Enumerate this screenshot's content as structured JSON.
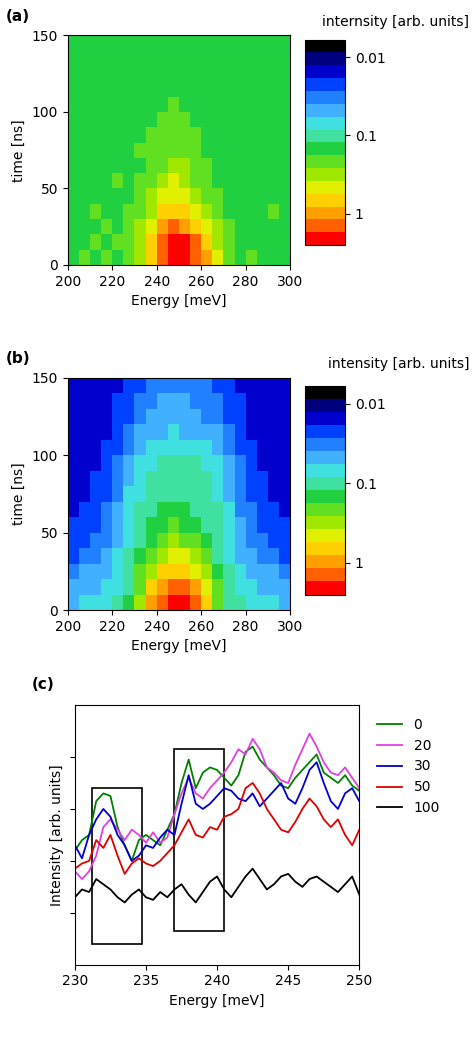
{
  "chart_data": [
    {
      "type": "heatmap",
      "label": "(a)",
      "xlabel": "Energy [meV]",
      "ylabel": "time [ns]",
      "colorbar_label": "internsity [arb. units]",
      "xlim": [
        200,
        300
      ],
      "xticks": [
        200,
        220,
        240,
        260,
        280,
        300
      ],
      "ylim": [
        0,
        150
      ],
      "yticks": [
        0,
        50,
        100,
        150
      ],
      "x_edges": [
        200,
        205,
        210,
        215,
        220,
        225,
        230,
        235,
        240,
        245,
        250,
        255,
        260,
        265,
        270,
        275,
        280,
        285,
        290,
        295,
        300
      ],
      "y_edges": [
        0,
        10,
        20,
        30,
        40,
        50,
        60,
        70,
        80,
        90,
        100,
        110,
        120,
        130,
        140,
        150
      ],
      "colorbar_range": [
        0.006,
        2.5
      ],
      "colorbar_ticks": [
        0.01,
        0.1,
        1
      ],
      "cells": [
        [
          0.15,
          0.18,
          0.14,
          0.2,
          0.17,
          0.25,
          0.35,
          0.8,
          1.5,
          2.0,
          2.0,
          1.6,
          0.9,
          0.4,
          0.22,
          0.16,
          0.18,
          0.14,
          0.17,
          0.15
        ],
        [
          0.16,
          0.14,
          0.19,
          0.15,
          0.2,
          0.22,
          0.3,
          0.7,
          1.4,
          2.0,
          1.9,
          1.3,
          0.7,
          0.35,
          0.2,
          0.15,
          0.17,
          0.15,
          0.14,
          0.16
        ],
        [
          0.14,
          0.17,
          0.15,
          0.18,
          0.16,
          0.2,
          0.28,
          0.5,
          0.9,
          1.2,
          1.1,
          0.8,
          0.5,
          0.28,
          0.18,
          0.16,
          0.15,
          0.17,
          0.16,
          0.14
        ],
        [
          0.16,
          0.15,
          0.18,
          0.14,
          0.17,
          0.18,
          0.22,
          0.35,
          0.6,
          0.8,
          0.7,
          0.5,
          0.32,
          0.22,
          0.17,
          0.15,
          0.16,
          0.14,
          0.18,
          0.15
        ],
        [
          0.15,
          0.16,
          0.14,
          0.17,
          0.15,
          0.17,
          0.2,
          0.28,
          0.4,
          0.55,
          0.5,
          0.35,
          0.25,
          0.19,
          0.16,
          0.17,
          0.14,
          0.16,
          0.15,
          0.17
        ],
        [
          0.17,
          0.14,
          0.16,
          0.15,
          0.18,
          0.16,
          0.18,
          0.22,
          0.3,
          0.4,
          0.35,
          0.26,
          0.2,
          0.17,
          0.15,
          0.16,
          0.17,
          0.15,
          0.14,
          0.16
        ],
        [
          0.15,
          0.17,
          0.15,
          0.16,
          0.14,
          0.17,
          0.17,
          0.2,
          0.25,
          0.3,
          0.28,
          0.22,
          0.18,
          0.16,
          0.17,
          0.14,
          0.16,
          0.17,
          0.15,
          0.15
        ],
        [
          0.16,
          0.15,
          0.17,
          0.14,
          0.16,
          0.15,
          0.18,
          0.18,
          0.22,
          0.25,
          0.24,
          0.2,
          0.17,
          0.15,
          0.16,
          0.15,
          0.14,
          0.16,
          0.17,
          0.14
        ],
        [
          0.14,
          0.16,
          0.15,
          0.17,
          0.15,
          0.16,
          0.15,
          0.18,
          0.2,
          0.22,
          0.2,
          0.18,
          0.16,
          0.15,
          0.14,
          0.16,
          0.15,
          0.14,
          0.16,
          0.15
        ],
        [
          0.15,
          0.14,
          0.17,
          0.15,
          0.16,
          0.14,
          0.17,
          0.16,
          0.18,
          0.19,
          0.18,
          0.17,
          0.15,
          0.16,
          0.15,
          0.14,
          0.16,
          0.15,
          0.14,
          0.17
        ],
        [
          0.16,
          0.15,
          0.14,
          0.16,
          0.13,
          0.17,
          0.15,
          0.16,
          0.17,
          0.18,
          0.17,
          0.16,
          0.15,
          0.14,
          0.16,
          0.15,
          0.13,
          0.16,
          0.15,
          0.14
        ],
        [
          0.14,
          0.16,
          0.15,
          0.13,
          0.16,
          0.15,
          0.16,
          0.15,
          0.16,
          0.17,
          0.16,
          0.15,
          0.16,
          0.15,
          0.13,
          0.16,
          0.15,
          0.14,
          0.16,
          0.15
        ],
        [
          0.15,
          0.13,
          0.16,
          0.15,
          0.14,
          0.16,
          0.14,
          0.16,
          0.15,
          0.16,
          0.15,
          0.16,
          0.14,
          0.16,
          0.15,
          0.14,
          0.16,
          0.15,
          0.13,
          0.16
        ],
        [
          0.16,
          0.15,
          0.14,
          0.16,
          0.15,
          0.13,
          0.16,
          0.15,
          0.16,
          0.15,
          0.16,
          0.14,
          0.15,
          0.13,
          0.16,
          0.15,
          0.14,
          0.16,
          0.15,
          0.14
        ],
        [
          0.14,
          0.16,
          0.15,
          0.14,
          0.16,
          0.15,
          0.14,
          0.16,
          0.15,
          0.16,
          0.15,
          0.16,
          0.14,
          0.16,
          0.15,
          0.16,
          0.15,
          0.14,
          0.16,
          0.15
        ]
      ]
    },
    {
      "type": "heatmap",
      "label": "(b)",
      "xlabel": "Energy [meV]",
      "ylabel": "time [ns]",
      "colorbar_label": "intensity [arb. units]",
      "xlim": [
        200,
        300
      ],
      "xticks": [
        200,
        220,
        240,
        260,
        280,
        300
      ],
      "ylim": [
        0,
        150
      ],
      "yticks": [
        0,
        50,
        100,
        150
      ],
      "x_edges": [
        200,
        205,
        210,
        215,
        220,
        225,
        230,
        235,
        240,
        245,
        250,
        255,
        260,
        265,
        270,
        275,
        280,
        285,
        290,
        295,
        300
      ],
      "y_edges": [
        0,
        10,
        20,
        30,
        40,
        50,
        60,
        70,
        80,
        90,
        100,
        110,
        120,
        130,
        140,
        150
      ],
      "colorbar_range": [
        0.006,
        2.5
      ],
      "colorbar_ticks": [
        0.01,
        0.1,
        1
      ],
      "cells": [
        [
          0.05,
          0.06,
          0.07,
          0.08,
          0.1,
          0.15,
          0.3,
          0.9,
          1.6,
          2.1,
          2.0,
          1.4,
          0.7,
          0.25,
          0.12,
          0.09,
          0.08,
          0.07,
          0.06,
          0.05
        ],
        [
          0.04,
          0.05,
          0.05,
          0.06,
          0.08,
          0.12,
          0.25,
          0.6,
          1.1,
          1.5,
          1.4,
          1.0,
          0.5,
          0.2,
          0.1,
          0.07,
          0.06,
          0.05,
          0.05,
          0.04
        ],
        [
          0.03,
          0.04,
          0.04,
          0.05,
          0.07,
          0.1,
          0.18,
          0.35,
          0.6,
          0.8,
          0.75,
          0.5,
          0.3,
          0.15,
          0.09,
          0.06,
          0.05,
          0.04,
          0.04,
          0.03
        ],
        [
          0.025,
          0.03,
          0.035,
          0.04,
          0.06,
          0.09,
          0.13,
          0.22,
          0.35,
          0.45,
          0.4,
          0.3,
          0.2,
          0.12,
          0.08,
          0.05,
          0.04,
          0.035,
          0.03,
          0.025
        ],
        [
          0.02,
          0.025,
          0.03,
          0.035,
          0.05,
          0.08,
          0.11,
          0.16,
          0.22,
          0.28,
          0.25,
          0.2,
          0.15,
          0.1,
          0.07,
          0.045,
          0.035,
          0.03,
          0.025,
          0.02
        ],
        [
          0.02,
          0.02,
          0.025,
          0.03,
          0.045,
          0.07,
          0.1,
          0.13,
          0.16,
          0.18,
          0.17,
          0.15,
          0.12,
          0.09,
          0.065,
          0.04,
          0.03,
          0.025,
          0.02,
          0.02
        ],
        [
          0.018,
          0.02,
          0.022,
          0.028,
          0.04,
          0.065,
          0.09,
          0.11,
          0.13,
          0.14,
          0.13,
          0.12,
          0.1,
          0.085,
          0.06,
          0.035,
          0.028,
          0.022,
          0.02,
          0.018
        ],
        [
          0.015,
          0.018,
          0.02,
          0.025,
          0.035,
          0.06,
          0.08,
          0.1,
          0.11,
          0.12,
          0.11,
          0.1,
          0.09,
          0.08,
          0.055,
          0.03,
          0.025,
          0.02,
          0.018,
          0.015
        ],
        [
          0.016,
          0.015,
          0.02,
          0.022,
          0.03,
          0.05,
          0.075,
          0.09,
          0.1,
          0.1,
          0.1,
          0.09,
          0.085,
          0.07,
          0.05,
          0.03,
          0.022,
          0.02,
          0.016,
          0.015
        ],
        [
          0.015,
          0.017,
          0.018,
          0.02,
          0.028,
          0.045,
          0.065,
          0.08,
          0.09,
          0.09,
          0.09,
          0.085,
          0.075,
          0.06,
          0.045,
          0.028,
          0.02,
          0.018,
          0.015,
          0.016
        ],
        [
          0.014,
          0.016,
          0.017,
          0.02,
          0.025,
          0.035,
          0.05,
          0.065,
          0.07,
          0.075,
          0.07,
          0.065,
          0.06,
          0.05,
          0.035,
          0.025,
          0.02,
          0.017,
          0.016,
          0.014
        ],
        [
          0.015,
          0.014,
          0.016,
          0.018,
          0.022,
          0.03,
          0.04,
          0.05,
          0.055,
          0.06,
          0.055,
          0.05,
          0.045,
          0.04,
          0.03,
          0.022,
          0.018,
          0.016,
          0.014,
          0.015
        ],
        [
          0.014,
          0.015,
          0.016,
          0.017,
          0.02,
          0.026,
          0.035,
          0.04,
          0.045,
          0.05,
          0.045,
          0.042,
          0.038,
          0.032,
          0.026,
          0.02,
          0.017,
          0.015,
          0.014,
          0.015
        ],
        [
          0.015,
          0.014,
          0.015,
          0.016,
          0.019,
          0.024,
          0.03,
          0.035,
          0.04,
          0.042,
          0.04,
          0.036,
          0.033,
          0.028,
          0.023,
          0.019,
          0.016,
          0.015,
          0.014,
          0.014
        ],
        [
          0.014,
          0.015,
          0.014,
          0.016,
          0.018,
          0.022,
          0.027,
          0.032,
          0.035,
          0.037,
          0.035,
          0.032,
          0.03,
          0.026,
          0.021,
          0.018,
          0.016,
          0.014,
          0.015,
          0.014
        ]
      ]
    },
    {
      "type": "line",
      "label": "(c)",
      "xlabel": "Energy [meV]",
      "ylabel": "Intensity [arb. units]",
      "xlim": [
        230,
        250
      ],
      "xticks": [
        230,
        235,
        240,
        245,
        250
      ],
      "ylim": [
        0,
        10
      ],
      "yticks": [
        2,
        4,
        6,
        8
      ],
      "tick_labels": "x",
      "legend": "right",
      "x": [
        230,
        230.5,
        231,
        231.5,
        232,
        232.5,
        233,
        233.5,
        234,
        234.5,
        235,
        235.5,
        236,
        236.5,
        237,
        237.5,
        238,
        238.5,
        239,
        239.5,
        240,
        240.5,
        241,
        241.5,
        242,
        242.5,
        243,
        243.5,
        244,
        244.5,
        245,
        245.5,
        246,
        246.5,
        247,
        247.5,
        248,
        248.5,
        249,
        249.5,
        250
      ],
      "series": [
        {
          "name": "0",
          "color": "#008000",
          "values": [
            4.4,
            4.8,
            5.0,
            6.3,
            6.6,
            6.5,
            5.3,
            4.6,
            4.0,
            4.8,
            5.0,
            4.8,
            4.6,
            5.2,
            5.8,
            7.0,
            7.9,
            6.8,
            7.4,
            7.6,
            7.5,
            7.2,
            6.9,
            7.3,
            8.2,
            8.4,
            7.9,
            7.6,
            7.3,
            6.9,
            6.8,
            7.2,
            7.5,
            7.8,
            8.1,
            7.4,
            7.2,
            7.0,
            7.3,
            6.9,
            6.7
          ]
        },
        {
          "name": "20",
          "color": "#e040e0",
          "values": [
            3.6,
            3.3,
            3.6,
            4.2,
            5.3,
            5.6,
            5.2,
            4.8,
            5.2,
            5.0,
            4.7,
            5.1,
            4.7,
            4.9,
            5.8,
            6.6,
            7.2,
            6.6,
            6.4,
            6.8,
            7.1,
            7.4,
            7.8,
            8.3,
            8.1,
            8.7,
            8.3,
            7.6,
            7.4,
            7.1,
            7.0,
            7.7,
            8.3,
            8.9,
            8.4,
            7.8,
            7.4,
            7.3,
            7.6,
            7.2,
            6.8
          ]
        },
        {
          "name": "30",
          "color": "#0000cc",
          "values": [
            4.6,
            4.1,
            5.0,
            5.6,
            6.0,
            5.7,
            5.0,
            4.6,
            4.0,
            4.2,
            4.6,
            4.5,
            4.9,
            5.2,
            5.0,
            6.2,
            7.3,
            6.2,
            6.0,
            6.2,
            6.5,
            6.8,
            6.7,
            6.4,
            6.3,
            6.6,
            6.1,
            6.4,
            6.7,
            7.0,
            6.4,
            6.2,
            6.8,
            7.5,
            7.8,
            7.0,
            6.3,
            6.0,
            6.6,
            6.8,
            6.3
          ]
        },
        {
          "name": "50",
          "color": "#e00000",
          "values": [
            3.7,
            3.9,
            4.0,
            4.8,
            4.5,
            5.0,
            4.2,
            3.5,
            3.9,
            4.1,
            3.9,
            3.8,
            4.0,
            4.3,
            4.6,
            5.1,
            5.6,
            5.0,
            4.9,
            5.3,
            5.2,
            5.7,
            5.8,
            6.0,
            6.8,
            7.0,
            6.6,
            6.0,
            5.6,
            5.2,
            5.1,
            5.5,
            6.0,
            6.4,
            6.1,
            5.6,
            5.3,
            5.6,
            5.0,
            4.6,
            5.2
          ]
        },
        {
          "name": "100",
          "color": "#000000",
          "values": [
            2.6,
            2.9,
            2.8,
            3.3,
            3.1,
            2.9,
            2.6,
            2.4,
            2.7,
            2.9,
            2.6,
            2.5,
            2.8,
            2.6,
            2.9,
            3.1,
            2.7,
            2.4,
            2.8,
            3.2,
            3.4,
            2.9,
            2.6,
            3.0,
            3.4,
            3.7,
            3.3,
            2.9,
            3.1,
            3.4,
            3.5,
            3.2,
            3.0,
            3.3,
            3.4,
            3.2,
            3.0,
            2.8,
            3.1,
            3.4,
            2.7
          ]
        }
      ],
      "boxes": [
        {
          "x": [
            231.2,
            234.7
          ],
          "y": [
            0.8,
            6.8
          ]
        },
        {
          "x": [
            237.0,
            240.5
          ],
          "y": [
            1.3,
            8.3
          ]
        }
      ]
    }
  ]
}
